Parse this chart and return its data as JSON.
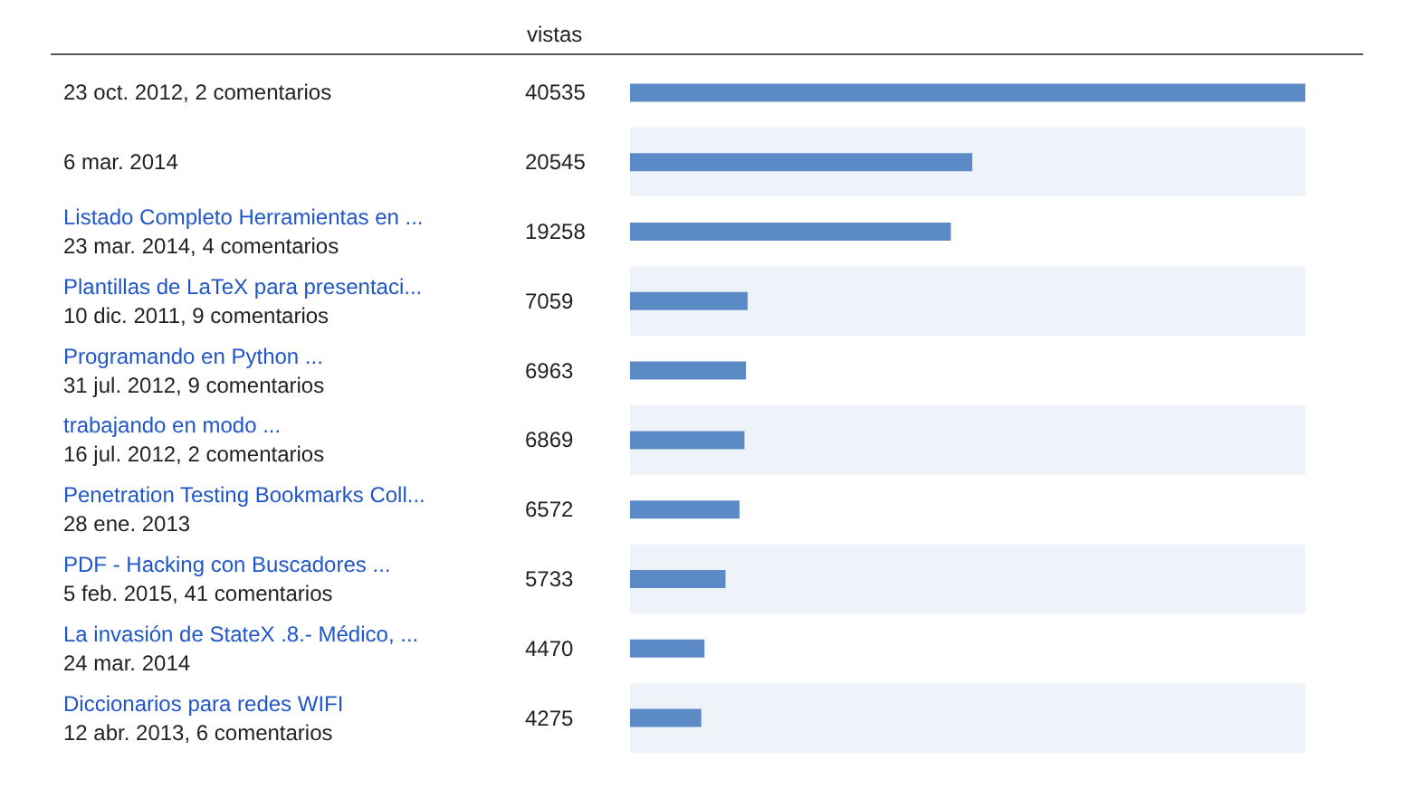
{
  "chart_data": {
    "type": "bar",
    "orientation": "horizontal",
    "xlabel": "vistas",
    "categories": [
      "23 oct. 2012, 2 comentarios",
      "6 mar. 2014",
      "Listado Completo Herramientas en ...\n23 mar. 2014, 4 comentarios",
      "Plantillas de LaTeX para presentaci...\n10 dic. 2011, 9 comentarios",
      "Programando en Python ...\n31 jul. 2012, 9 comentarios",
      "trabajando en modo ...\n16 jul. 2012, 2 comentarios",
      "Penetration Testing Bookmarks Coll...\n28 ene. 2013",
      "PDF - Hacking con Buscadores ...\n5 feb. 2015, 41 comentarios",
      "La invasión de StateX .8.- Médico, ...\n24 mar. 2014",
      "Diccionarios para redes WIFI\n12 abr. 2013, 6 comentarios"
    ],
    "values": [
      40535,
      20545,
      19258,
      7059,
      6963,
      6869,
      6572,
      5733,
      4470,
      4275
    ],
    "color": "#5b8ac6",
    "data_labels": true,
    "grid": false,
    "tick_labels": false
  }
}
